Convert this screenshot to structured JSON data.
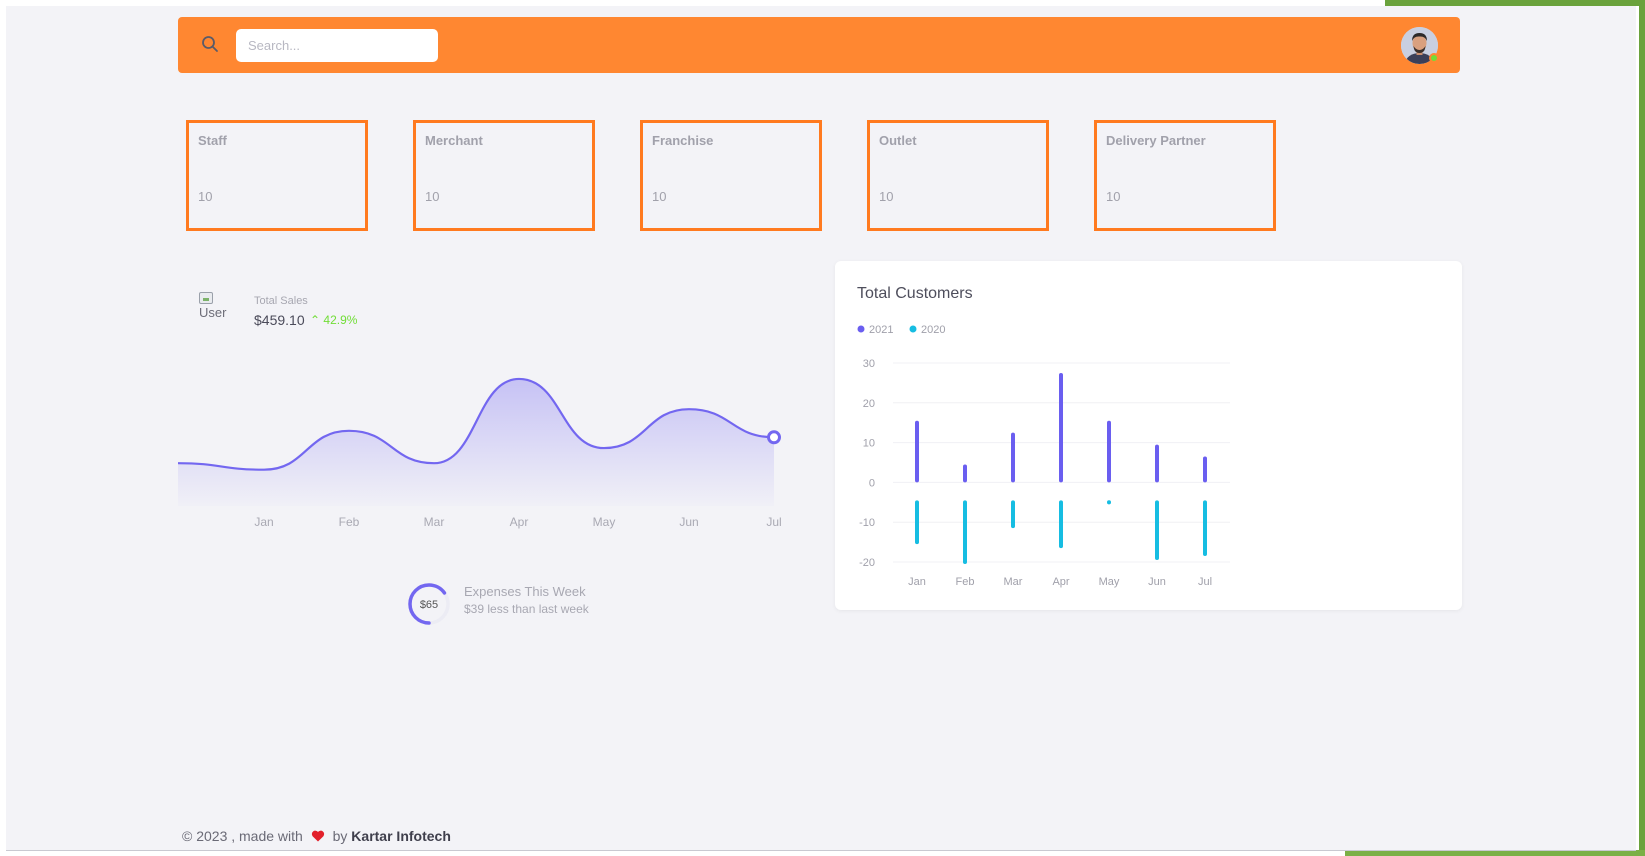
{
  "header": {
    "search_placeholder": "Search...",
    "search_icon": "search-icon",
    "avatar_icon": "user-avatar",
    "status": "online"
  },
  "stats": [
    {
      "title": "Staff",
      "value": "10"
    },
    {
      "title": "Merchant",
      "value": "10"
    },
    {
      "title": "Franchise",
      "value": "10"
    },
    {
      "title": "Outlet",
      "value": "10"
    },
    {
      "title": "Delivery Partner",
      "value": "10"
    }
  ],
  "sales": {
    "image_alt": "User",
    "label": "Total Sales",
    "value": "$459.10",
    "change": "42.9%",
    "change_icon": "chevron-up-icon"
  },
  "expenses": {
    "amount": "$65",
    "progress": 0.65,
    "title": "Expenses This Week",
    "subtitle": "$39 less than last week"
  },
  "chart_data": [
    {
      "type": "area",
      "title": "",
      "categories": [
        "Jan",
        "Feb",
        "Mar",
        "Apr",
        "May",
        "Jun",
        "Jul"
      ],
      "series": [
        {
          "values": [
            2,
            20,
            5,
            44,
            12,
            30,
            17
          ]
        }
      ],
      "xlabel": "",
      "ylabel": "",
      "ylim": [
        0,
        50
      ],
      "grid": false,
      "color": "#7367f0"
    },
    {
      "type": "bar",
      "title": "Total Customers",
      "categories": [
        "Jan",
        "Feb",
        "Mar",
        "Apr",
        "May",
        "Jun",
        "Jul"
      ],
      "series": [
        {
          "name": "2021",
          "values": [
            15,
            4,
            12,
            27,
            15,
            9,
            6
          ],
          "color": "#6a5ef0"
        },
        {
          "name": "2020",
          "values": [
            -15,
            -20,
            -11,
            -16,
            -5,
            -19,
            -18
          ],
          "color": "#16bde2"
        }
      ],
      "yticks": [
        30,
        20,
        10,
        0,
        -10,
        -20
      ],
      "ylim": [
        -20,
        30
      ],
      "xlabel": "",
      "ylabel": "",
      "grid": true,
      "legend": "top-left"
    }
  ],
  "footer": {
    "prefix": "© 2023 , made with",
    "heart_icon": "heart-icon",
    "by": "by",
    "company": "Kartar Infotech"
  }
}
